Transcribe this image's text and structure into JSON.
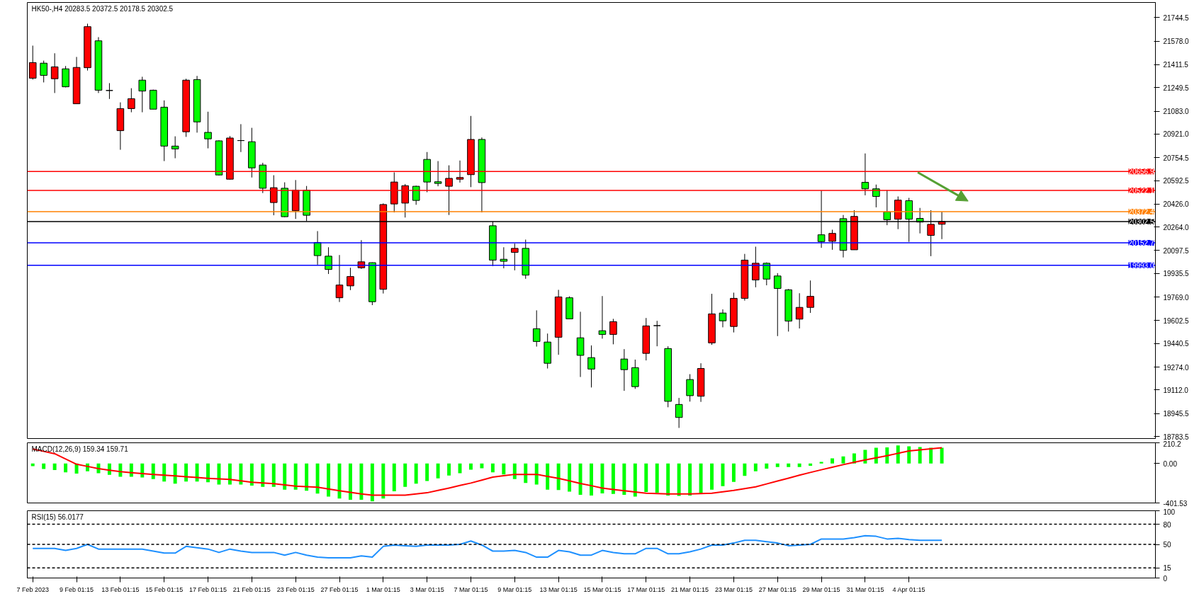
{
  "chart_data": [
    {
      "type": "candlestick",
      "title": "HK50-,H4 20283.5 20372.5 20178.5 20302.5",
      "grid": false,
      "tick_labels": "y",
      "ylim": [
        18769,
        21851
      ],
      "yticks": [
        21744.5,
        {
          "value": 21578,
          "label": "21578.0"
        },
        21411.5,
        21249.5,
        {
          "value": 21083,
          "label": "21083.0"
        },
        {
          "value": 20921,
          "label": "20921.0"
        },
        20754.5,
        20592.5,
        {
          "value": 20426,
          "label": "20426.0"
        },
        {
          "value": 20264,
          "label": "20264.0"
        },
        20097.5,
        19935.5,
        {
          "value": 19769,
          "label": "19769.0"
        },
        19602.5,
        19440.5,
        {
          "value": 19274,
          "label": "19274.0"
        },
        {
          "value": 19112,
          "label": "19112.0"
        },
        18945.5,
        18783.5
      ],
      "categories": [
        null,
        null,
        null,
        null,
        null,
        null,
        null,
        null,
        null,
        null,
        null,
        null,
        null,
        null,
        null,
        null,
        null,
        null,
        null,
        null,
        null,
        null,
        null,
        null,
        null,
        null,
        null,
        null,
        null,
        null,
        null,
        null,
        null,
        null,
        null,
        null,
        null,
        null,
        null,
        null,
        null,
        null,
        null,
        null,
        null,
        null,
        null,
        null,
        null,
        null,
        null,
        null,
        null,
        null,
        null,
        null,
        null,
        null,
        null,
        null,
        null,
        null,
        null,
        null,
        null,
        null,
        null,
        null,
        null,
        null,
        null,
        null,
        null,
        null,
        null,
        null,
        null,
        null,
        null,
        null,
        null,
        null,
        null,
        null,
        null,
        null,
        null,
        null,
        null,
        null,
        null,
        null,
        null,
        null,
        null,
        null,
        null,
        null,
        null,
        null,
        null,
        null,
        null
      ],
      "ohlc": [
        [
          21316,
          21546,
          21306,
          21426
        ],
        [
          21422,
          21440,
          21286,
          21336
        ],
        [
          21312,
          21492,
          21211,
          21396
        ],
        [
          21382,
          21402,
          21251,
          21255
        ],
        [
          21135,
          21466,
          21135,
          21392
        ],
        [
          21390,
          21701,
          21370,
          21680
        ],
        [
          21580,
          21606,
          21211,
          21231
        ],
        [
          21229,
          21281,
          21169,
          21229
        ],
        [
          20945,
          21145,
          20810,
          21101
        ],
        [
          21101,
          21245,
          21075,
          21171
        ],
        [
          21302,
          21326,
          21075,
          21225
        ],
        [
          21231,
          21235,
          21097,
          21097
        ],
        [
          21111,
          21159,
          20730,
          20836
        ],
        [
          20836,
          20905,
          20750,
          20816
        ],
        [
          20937,
          21312,
          20901,
          21302
        ],
        [
          21306,
          21332,
          20931,
          21007
        ],
        [
          20933,
          21079,
          20820,
          20887
        ],
        [
          20873,
          20877,
          20628,
          20632
        ],
        [
          20602,
          20907,
          20600,
          20893
        ],
        [
          20875,
          20991,
          20794,
          20875
        ],
        [
          20867,
          20965,
          20614,
          20682
        ],
        [
          20702,
          20718,
          20504,
          20538
        ],
        [
          20437,
          20630,
          20347,
          20542
        ],
        [
          20538,
          20580,
          20333,
          20337
        ],
        [
          20379,
          20596,
          20321,
          20524
        ],
        [
          20524,
          20554,
          20305,
          20347
        ],
        [
          20155,
          20235,
          19998,
          20062
        ],
        [
          20058,
          20121,
          19932,
          19964
        ],
        [
          19764,
          20066,
          19734,
          19854
        ],
        [
          19848,
          19976,
          19818,
          19914
        ],
        [
          19976,
          20171,
          19968,
          20018
        ],
        [
          20012,
          20014,
          19712,
          19736
        ],
        [
          19824,
          20431,
          19794,
          20423
        ],
        [
          20427,
          20650,
          20367,
          20582
        ],
        [
          20433,
          20568,
          20331,
          20556
        ],
        [
          20552,
          20556,
          20421,
          20452
        ],
        [
          20742,
          20794,
          20510,
          20582
        ],
        [
          20584,
          20730,
          20552,
          20572
        ],
        [
          20552,
          20700,
          20349,
          20608
        ],
        [
          20602,
          20734,
          20578,
          20614
        ],
        [
          20634,
          21049,
          20546,
          20883
        ],
        [
          20883,
          20897,
          20367,
          20578
        ],
        [
          20273,
          20303,
          19988,
          20030
        ],
        [
          20036,
          20121,
          19972,
          20022
        ],
        [
          20085,
          20147,
          19958,
          20113
        ],
        [
          20113,
          20175,
          19898,
          19924
        ],
        [
          19545,
          19675,
          19419,
          19455
        ],
        [
          19451,
          19511,
          19264,
          19301
        ],
        [
          19485,
          19820,
          19361,
          19770
        ],
        [
          19764,
          19774,
          19615,
          19615
        ],
        [
          19481,
          19665,
          19204,
          19357
        ],
        [
          19341,
          19427,
          19130,
          19260
        ],
        [
          19531,
          19776,
          19475,
          19505
        ],
        [
          19505,
          19615,
          19435,
          19595
        ],
        [
          19331,
          19401,
          19106,
          19256
        ],
        [
          19270,
          19327,
          19120,
          19136
        ],
        [
          19371,
          19621,
          19321,
          19565
        ],
        [
          19567,
          19601,
          19421,
          19567
        ],
        [
          19405,
          19421,
          18990,
          19032
        ],
        [
          19010,
          19056,
          18844,
          18918
        ],
        [
          19186,
          19224,
          19030,
          19072
        ],
        [
          19068,
          19301,
          19028,
          19264
        ],
        [
          19445,
          19792,
          19431,
          19650
        ],
        [
          19656,
          19682,
          19555,
          19601
        ],
        [
          19561,
          19800,
          19519,
          19760
        ],
        [
          19760,
          20074,
          19744,
          20030
        ],
        [
          19890,
          20125,
          19838,
          20008
        ],
        [
          20008,
          20014,
          19852,
          19896
        ],
        [
          19918,
          19938,
          19493,
          19830
        ],
        [
          19820,
          19826,
          19525,
          19599
        ],
        [
          19613,
          19796,
          19547,
          19696
        ],
        [
          19696,
          19886,
          19657,
          19774
        ],
        [
          20209,
          20522,
          20117,
          20161
        ],
        [
          20163,
          20245,
          20103,
          20219
        ],
        [
          20323,
          20349,
          20049,
          20099
        ],
        [
          20103,
          20383,
          20103,
          20339
        ],
        [
          20580,
          20784,
          20488,
          20534
        ],
        [
          20534,
          20564,
          20403,
          20480
        ],
        [
          20371,
          20524,
          20277,
          20315
        ],
        [
          20319,
          20480,
          20249,
          20454
        ],
        [
          20450,
          20470,
          20159,
          20319
        ],
        [
          20325,
          20399,
          20219,
          20299
        ],
        [
          20205,
          20383,
          20058,
          20283
        ],
        [
          20283.5,
          20372.5,
          20178.5,
          20302.5
        ],
        null,
        null,
        null,
        null,
        null,
        null,
        null,
        null,
        null,
        null,
        null,
        null,
        null,
        null,
        null,
        null,
        null,
        null,
        null
      ],
      "colors": [
        "#ff0000",
        "#00ff00",
        "#ff0000",
        "#00ff00",
        "#ff0000",
        "#ff0000",
        "#00ff00",
        "#000000",
        "#ff0000",
        "#ff0000",
        "#00ff00",
        "#00ff00",
        "#00ff00",
        "#00ff00",
        "#ff0000",
        "#00ff00",
        "#00ff00",
        "#00ff00",
        "#ff0000",
        "#000000",
        "#00ff00",
        "#00ff00",
        "#ff0000",
        "#00ff00",
        "#ff0000",
        "#00ff00",
        "#00ff00",
        "#00ff00",
        "#ff0000",
        "#ff0000",
        "#ff0000",
        "#00ff00",
        "#ff0000",
        "#ff0000",
        "#ff0000",
        "#00ff00",
        "#00ff00",
        "#00ff00",
        "#ff0000",
        "#ff0000",
        "#ff0000",
        "#00ff00",
        "#00ff00",
        "#00ff00",
        "#ff0000",
        "#00ff00",
        "#00ff00",
        "#00ff00",
        "#ff0000",
        "#00ff00",
        "#00ff00",
        "#00ff00",
        "#00ff00",
        "#ff0000",
        "#00ff00",
        "#00ff00",
        "#ff0000",
        "#000000",
        "#00ff00",
        "#00ff00",
        "#00ff00",
        "#ff0000",
        "#ff0000",
        "#00ff00",
        "#ff0000",
        "#ff0000",
        "#ff0000",
        "#00ff00",
        "#00ff00",
        "#00ff00",
        "#ff0000",
        "#ff0000",
        "#00ff00",
        "#ff0000",
        "#00ff00",
        "#ff0000",
        "#00ff00",
        "#00ff00",
        "#00ff00",
        "#ff0000",
        "#00ff00",
        "#00ff00",
        "#ff0000",
        "#ff0000",
        null,
        null,
        null,
        null,
        null,
        null,
        null,
        null,
        null,
        null,
        null,
        null,
        null,
        null,
        null,
        null,
        null,
        null,
        null
      ],
      "ref_lines": [
        {
          "axis": "y",
          "value": 20656.9,
          "label": "20656.9",
          "color": "#ff0000"
        },
        {
          "axis": "y",
          "value": 20522.1,
          "label": "20522.1",
          "color": "#ff0000"
        },
        {
          "axis": "y",
          "value": 20372.4,
          "label": "20372.4",
          "color": "#ff8000"
        },
        {
          "axis": "y",
          "value": 20302.5,
          "label": "20302.5",
          "color": "#000000"
        },
        {
          "axis": "y",
          "value": 20152.7,
          "label": "20152.7",
          "color": "#0000ff"
        },
        {
          "axis": "y",
          "value": 19993.0,
          "label": "19993.0",
          "color": "#0000ff"
        }
      ]
    },
    {
      "type": "bar",
      "title": "MACD(12,26,9) 159.34 159.71",
      "grid": false,
      "tick_labels": "y",
      "ylim": [
        -401.53,
        210.2
      ],
      "yticks": [
        210.2,
        {
          "value": 0,
          "label": "0.00"
        },
        -401.53
      ],
      "categories": [
        null,
        null,
        null,
        null,
        null,
        null,
        null,
        null,
        null,
        null,
        null,
        null,
        null,
        null,
        null,
        null,
        null,
        null,
        null,
        null,
        null,
        null,
        null,
        null,
        null,
        null,
        null,
        null,
        null,
        null,
        null,
        null,
        null,
        null,
        null,
        null,
        null,
        null,
        null,
        null,
        null,
        null,
        null,
        null,
        null,
        null,
        null,
        null,
        null,
        null,
        null,
        null,
        null,
        null,
        null,
        null,
        null,
        null,
        null,
        null,
        null,
        null,
        null,
        null,
        null,
        null,
        null,
        null,
        null,
        null,
        null,
        null,
        null,
        null,
        null,
        null,
        null,
        null,
        null,
        null,
        null,
        null,
        null,
        null,
        null,
        null,
        null,
        null,
        null,
        null,
        null,
        null,
        null,
        null,
        null,
        null,
        null,
        null,
        null,
        null,
        null,
        null,
        null
      ],
      "series": [
        {
          "type": "bar",
          "color": "#00ff00",
          "values": [
            -28,
            -56,
            -67,
            -91,
            -103,
            -79,
            -99,
            -115,
            -135,
            -135,
            -143,
            -159,
            -183,
            -206,
            -183,
            -183,
            -191,
            -214,
            -214,
            -214,
            -226,
            -238,
            -238,
            -266,
            -266,
            -278,
            -306,
            -337,
            -357,
            -369,
            -369,
            -385,
            -357,
            -282,
            -238,
            -206,
            -179,
            -151,
            -123,
            -99,
            -64,
            -48,
            -91,
            -111,
            -159,
            -199,
            -214,
            -266,
            -270,
            -286,
            -318,
            -326,
            -305,
            -310,
            -318,
            -337,
            -290,
            -298,
            -326,
            -330,
            -326,
            -310,
            -266,
            -230,
            -187,
            -127,
            -79,
            -52,
            -36,
            -36,
            -36,
            -24,
            16,
            52,
            71,
            103,
            139,
            159,
            163,
            183,
            175,
            167,
            159,
            159.34,
            null,
            null,
            null,
            null,
            null,
            null,
            null,
            null,
            null,
            null,
            null,
            null,
            null,
            null,
            null,
            null,
            null,
            null,
            null
          ]
        },
        {
          "type": "line",
          "color": "#ff0000",
          "values": [
            147,
            123,
            99,
            45,
            -8,
            -30,
            -52,
            -68,
            -83,
            -93,
            -103,
            -111,
            -119,
            -127,
            -135,
            -143,
            -151,
            -157,
            -163,
            -177,
            -191,
            -198,
            -206,
            -218,
            -230,
            -236,
            -242,
            -260,
            -278,
            -294,
            -310,
            -322,
            -322,
            -322,
            -322,
            -310,
            -298,
            -274,
            -250,
            -224,
            -199,
            -169,
            -139,
            -125,
            -111,
            -111,
            -111,
            -131,
            -151,
            -177,
            -203,
            -226,
            -250,
            -264,
            -278,
            -290,
            -302,
            -306,
            -310,
            -310,
            -310,
            -306,
            -302,
            -288,
            -274,
            -256,
            -238,
            -208,
            -179,
            -149,
            -119,
            -91,
            -64,
            -38,
            -12,
            12,
            36,
            57,
            79,
            103,
            127,
            138,
            149,
            159.71,
            null,
            null,
            null,
            null,
            null,
            null,
            null,
            null,
            null,
            null,
            null,
            null,
            null,
            null,
            null,
            null,
            null,
            null,
            null
          ]
        }
      ]
    },
    {
      "type": "line",
      "title": "RSI(15) 56.0177",
      "grid": false,
      "ylim": [
        0,
        100
      ],
      "yticks": [
        100,
        80,
        50,
        15,
        0
      ],
      "categories": [
        "7 Feb 2023",
        null,
        null,
        null,
        "9 Feb 01:15",
        null,
        null,
        null,
        "13 Feb 01:15",
        null,
        null,
        null,
        "15 Feb 01:15",
        null,
        null,
        null,
        "17 Feb 01:15",
        null,
        null,
        null,
        "21 Feb 01:15",
        null,
        null,
        null,
        "23 Feb 01:15",
        null,
        null,
        null,
        "27 Feb 01:15",
        null,
        null,
        null,
        "1 Mar 01:15",
        null,
        null,
        null,
        "3 Mar 01:15",
        null,
        null,
        null,
        "7 Mar 01:15",
        null,
        null,
        null,
        "9 Mar 01:15",
        null,
        null,
        null,
        "13 Mar 01:15",
        null,
        null,
        null,
        "15 Mar 01:15",
        null,
        null,
        null,
        "17 Mar 01:15",
        null,
        null,
        null,
        "21 Mar 01:15",
        null,
        null,
        null,
        "23 Mar 01:15",
        null,
        null,
        null,
        "27 Mar 01:15",
        null,
        null,
        null,
        "29 Mar 01:15",
        null,
        null,
        null,
        "31 Mar 01:15",
        null,
        null,
        null,
        "4 Apr 01:15",
        null,
        null,
        null,
        null,
        null,
        null,
        null,
        null,
        null,
        null,
        null,
        null,
        null,
        null,
        null,
        null,
        null,
        null,
        null,
        null,
        null,
        null
      ],
      "ref_lines": [
        {
          "axis": "y",
          "value": 80,
          "color": "#000000",
          "line_style": "dashed"
        },
        {
          "axis": "y",
          "value": 50,
          "color": "#000000",
          "line_style": "dashed"
        },
        {
          "axis": "y",
          "value": 15,
          "color": "#000000",
          "line_style": "dashed"
        }
      ],
      "series": [
        {
          "color": "#1e90ff",
          "values": [
            44,
            44,
            44,
            41,
            44,
            50,
            43,
            43,
            43,
            43,
            43,
            40,
            37,
            37,
            47,
            45,
            43,
            38,
            43,
            40,
            38,
            38,
            38,
            34,
            38,
            34,
            31,
            30,
            30,
            30,
            33,
            31,
            47,
            49,
            48,
            47,
            49,
            49,
            49,
            50,
            55,
            49,
            40,
            40,
            41,
            38,
            31,
            31,
            41,
            39,
            34,
            34,
            41,
            38,
            36,
            36,
            44,
            44,
            36,
            36,
            39,
            43,
            49,
            49,
            52,
            56,
            56,
            54,
            52,
            48,
            49,
            50,
            58,
            58,
            58,
            60,
            63,
            62,
            58,
            59,
            57,
            56,
            56,
            56.0177,
            null,
            null,
            null,
            null,
            null,
            null,
            null,
            null,
            null,
            null,
            null,
            null,
            null,
            null,
            null,
            null,
            null,
            null,
            null
          ]
        }
      ]
    }
  ]
}
